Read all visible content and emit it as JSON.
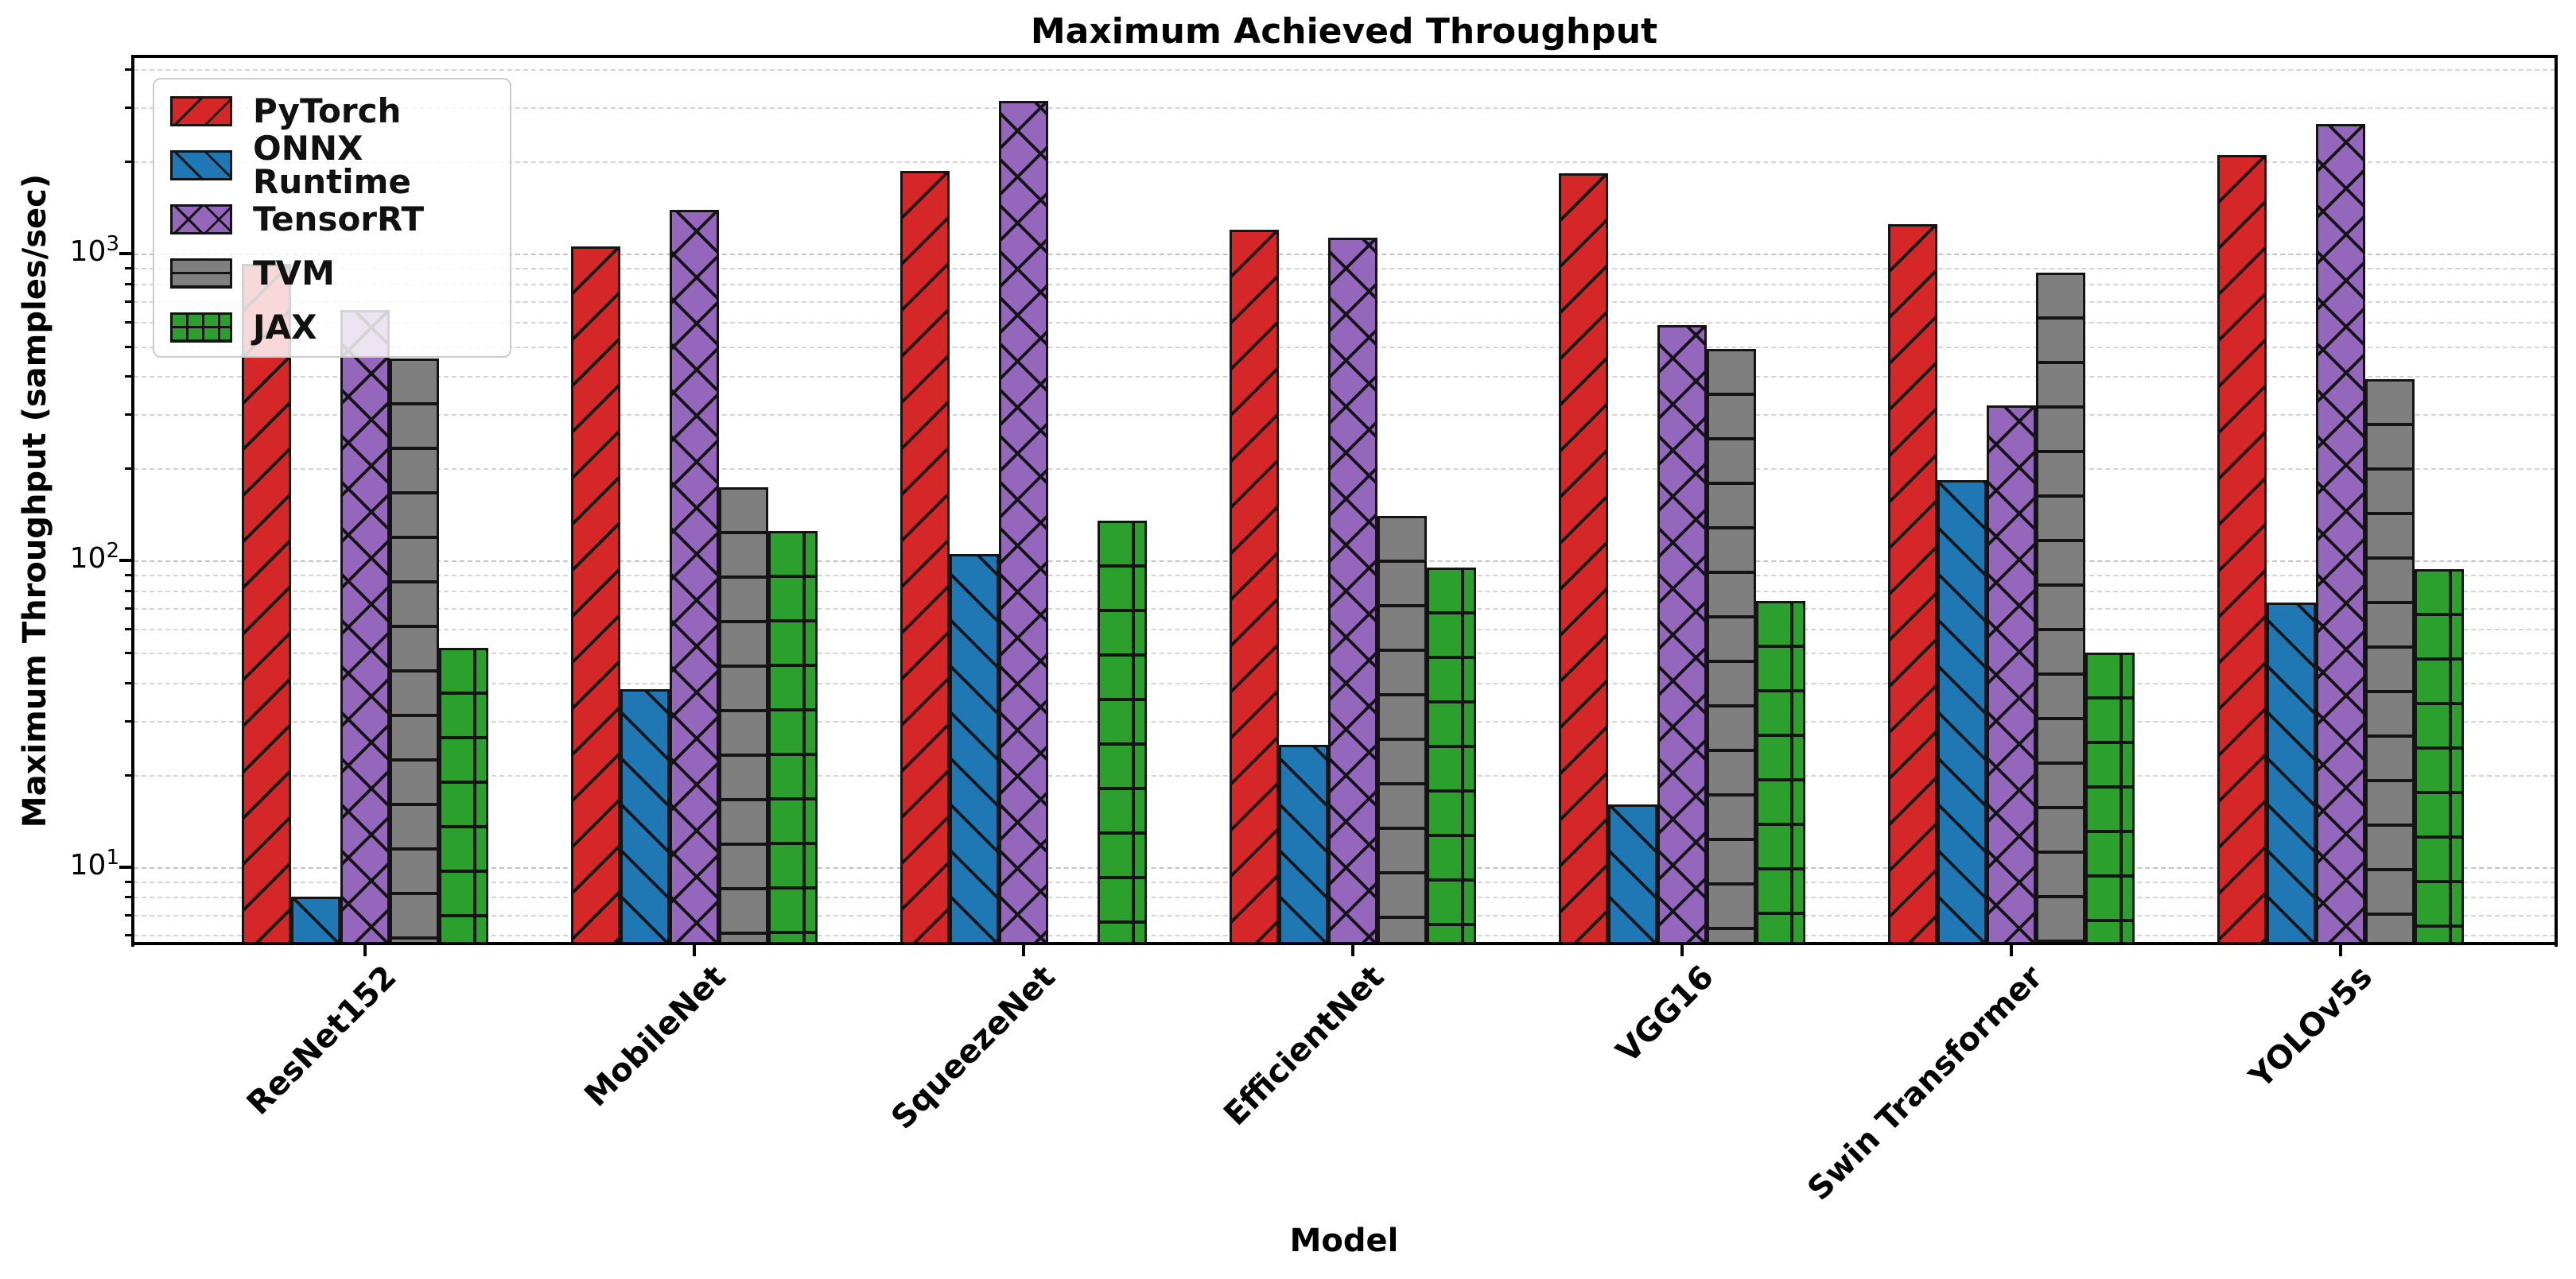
{
  "title": "Maximum Achieved Throughput",
  "ylabel": "Maximum Throughput (samples/sec)",
  "xlabel": "Model",
  "chart_data": {
    "type": "bar",
    "yscale": "log",
    "grid": "major+minor, dashed, horizontal",
    "legend_position": "upper left",
    "ylim": [
      5.6,
      4380
    ],
    "yticks": [
      10,
      100,
      1000
    ],
    "categories": [
      "ResNet152",
      "MobileNet",
      "SqueezeNet",
      "EfficientNet",
      "VGG16",
      "Swin Transformer",
      "YOLOv5s"
    ],
    "series": [
      {
        "name": "PyTorch",
        "color": "#d62728",
        "hatch": "/",
        "values": [
          930,
          1060,
          1870,
          1200,
          1830,
          1250,
          2100
        ]
      },
      {
        "name": "ONNX Runtime",
        "color": "#1f77b4",
        "hatch": "\\",
        "values": [
          8,
          38,
          105,
          25,
          16,
          183,
          73
        ]
      },
      {
        "name": "TensorRT",
        "color": "#9467bd",
        "hatch": "x",
        "values": [
          655,
          1390,
          3150,
          1130,
          585,
          320,
          2650
        ]
      },
      {
        "name": "TVM",
        "color": "#7f7f7f",
        "hatch": "-",
        "values": [
          455,
          173,
          null,
          140,
          490,
          870,
          390
        ]
      },
      {
        "name": "JAX",
        "color": "#2ca02c",
        "hatch": "+",
        "values": [
          52,
          125,
          135,
          95,
          74,
          50,
          94
        ]
      }
    ]
  }
}
